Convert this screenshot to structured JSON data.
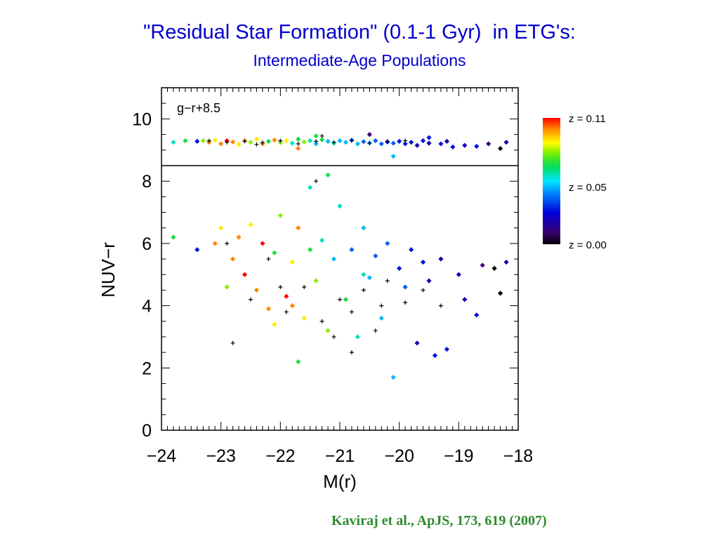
{
  "slide": {
    "title": "\"Residual Star Formation\" (0.1-1 Gyr)  in ETG's:",
    "subtitle": "Intermediate-Age Populations",
    "citation": "Kaviraj et al., ApJS, 173, 619 (2007)"
  },
  "chart_data": {
    "type": "scatter",
    "xlabel": "M(r)",
    "ylabel": "NUV−r",
    "xlim": [
      -24,
      -18
    ],
    "x_ticks": [
      "−24",
      "−23",
      "−22",
      "−21",
      "−20",
      "−19",
      "−18"
    ],
    "panels": [
      {
        "name": "g-r",
        "annotation": "g−r+8.5",
        "ylim": [
          8.5,
          11
        ],
        "y_ticks": [
          "10"
        ],
        "y_tick_values": [
          10
        ],
        "points": [
          [
            -23.8,
            9.25,
            0.06
          ],
          [
            -23.6,
            9.3,
            0.07
          ],
          [
            -23.4,
            9.28,
            0.03
          ],
          [
            -23.3,
            9.3,
            0.08
          ],
          [
            -23.2,
            9.25,
            0.1
          ],
          [
            -23.1,
            9.32,
            0.09
          ],
          [
            -23.0,
            9.2,
            0.1
          ],
          [
            -22.9,
            9.3,
            0.11
          ],
          [
            -22.8,
            9.26,
            0.1
          ],
          [
            -22.7,
            9.18,
            0.09
          ],
          [
            -22.6,
            9.3,
            0.1
          ],
          [
            -22.5,
            9.25,
            0.08
          ],
          [
            -22.4,
            9.35,
            0.09
          ],
          [
            -22.3,
            9.2,
            0.1
          ],
          [
            -22.2,
            9.28,
            0.07
          ],
          [
            -22.1,
            9.32,
            0.1
          ],
          [
            -22.0,
            9.24,
            0.08
          ],
          [
            -21.9,
            9.3,
            0.09
          ],
          [
            -21.8,
            9.22,
            0.06
          ],
          [
            -21.7,
            9.35,
            0.07
          ],
          [
            -21.6,
            9.26,
            0.08
          ],
          [
            -21.5,
            9.3,
            0.06
          ],
          [
            -21.4,
            9.2,
            0.05
          ],
          [
            -21.3,
            9.33,
            0.07
          ],
          [
            -21.2,
            9.28,
            0.05
          ],
          [
            -21.1,
            9.22,
            0.06
          ],
          [
            -21.0,
            9.3,
            0.05
          ],
          [
            -20.9,
            9.25,
            0.05
          ],
          [
            -20.8,
            9.32,
            0.04
          ],
          [
            -20.7,
            9.2,
            0.05
          ],
          [
            -20.6,
            9.27,
            0.04
          ],
          [
            -20.5,
            9.23,
            0.05
          ],
          [
            -20.4,
            9.3,
            0.04
          ],
          [
            -20.3,
            9.2,
            0.04
          ],
          [
            -20.2,
            9.26,
            0.03
          ],
          [
            -20.1,
            9.22,
            0.04
          ],
          [
            -20.0,
            9.28,
            0.03
          ],
          [
            -19.9,
            9.2,
            0.03
          ],
          [
            -19.8,
            9.25,
            0.03
          ],
          [
            -19.7,
            9.15,
            0.02
          ],
          [
            -19.6,
            9.3,
            0.03
          ],
          [
            -19.5,
            9.22,
            0.02
          ],
          [
            -19.3,
            9.2,
            0.03
          ],
          [
            -19.2,
            9.28,
            0.02
          ],
          [
            -19.1,
            9.1,
            0.03
          ],
          [
            -18.9,
            9.15,
            0.02
          ],
          [
            -18.7,
            9.12,
            0.03
          ],
          [
            -18.5,
            9.2,
            0.01
          ],
          [
            -18.3,
            9.05,
            0.0
          ],
          [
            -18.2,
            9.25,
            0.02
          ],
          [
            -20.5,
            9.5,
            0.01
          ],
          [
            -19.5,
            9.4,
            0.03
          ],
          [
            -21.4,
            9.45,
            0.07
          ],
          [
            -20.1,
            8.8,
            0.05
          ],
          [
            -21.7,
            9.05,
            0.1
          ]
        ],
        "unresolved_points": [
          [
            -23.2,
            9.3
          ],
          [
            -22.9,
            9.25
          ],
          [
            -22.6,
            9.28
          ],
          [
            -22.3,
            9.24
          ],
          [
            -22.0,
            9.3
          ],
          [
            -21.7,
            9.2
          ],
          [
            -21.4,
            9.28
          ],
          [
            -21.1,
            9.25
          ],
          [
            -20.8,
            9.3
          ],
          [
            -20.5,
            9.22
          ],
          [
            -20.2,
            9.28
          ],
          [
            -19.9,
            9.3
          ],
          [
            -21.3,
            9.45
          ],
          [
            -22.4,
            9.18
          ]
        ]
      },
      {
        "name": "nuv-r",
        "ylim": [
          0,
          8.5
        ],
        "y_ticks": [
          "0",
          "2",
          "4",
          "6",
          "8"
        ],
        "y_tick_values": [
          0,
          2,
          4,
          6,
          8
        ],
        "points": [
          [
            -23.8,
            6.2,
            0.07
          ],
          [
            -23.4,
            5.8,
            0.03
          ],
          [
            -23.1,
            6.0,
            0.1
          ],
          [
            -23.0,
            6.5,
            0.09
          ],
          [
            -22.9,
            4.6,
            0.08
          ],
          [
            -22.8,
            5.5,
            0.1
          ],
          [
            -22.7,
            6.2,
            0.1
          ],
          [
            -22.6,
            5.0,
            0.11
          ],
          [
            -22.5,
            6.6,
            0.09
          ],
          [
            -22.4,
            4.5,
            0.1
          ],
          [
            -22.3,
            6.0,
            0.11
          ],
          [
            -22.2,
            3.9,
            0.1
          ],
          [
            -22.1,
            5.7,
            0.07
          ],
          [
            -22.0,
            6.9,
            0.08
          ],
          [
            -21.9,
            4.3,
            0.11
          ],
          [
            -21.8,
            5.4,
            0.09
          ],
          [
            -21.7,
            6.5,
            0.1
          ],
          [
            -21.6,
            3.6,
            0.09
          ],
          [
            -21.5,
            5.8,
            0.07
          ],
          [
            -21.4,
            4.8,
            0.08
          ],
          [
            -21.3,
            6.1,
            0.06
          ],
          [
            -21.2,
            3.2,
            0.08
          ],
          [
            -21.1,
            5.5,
            0.05
          ],
          [
            -21.0,
            7.2,
            0.06
          ],
          [
            -20.9,
            4.2,
            0.07
          ],
          [
            -20.8,
            5.8,
            0.04
          ],
          [
            -20.7,
            3.0,
            0.06
          ],
          [
            -20.6,
            6.5,
            0.05
          ],
          [
            -20.5,
            4.9,
            0.05
          ],
          [
            -20.4,
            5.6,
            0.04
          ],
          [
            -20.3,
            3.6,
            0.05
          ],
          [
            -20.2,
            6.0,
            0.04
          ],
          [
            -20.1,
            1.7,
            0.05
          ],
          [
            -20.0,
            5.2,
            0.03
          ],
          [
            -19.9,
            4.6,
            0.04
          ],
          [
            -19.8,
            5.8,
            0.03
          ],
          [
            -19.7,
            2.8,
            0.02
          ],
          [
            -19.6,
            5.4,
            0.03
          ],
          [
            -19.5,
            4.8,
            0.02
          ],
          [
            -19.4,
            2.4,
            0.03
          ],
          [
            -19.3,
            5.5,
            0.02
          ],
          [
            -19.2,
            2.6,
            0.03
          ],
          [
            -19.0,
            5.0,
            0.02
          ],
          [
            -18.9,
            4.2,
            0.02
          ],
          [
            -18.7,
            3.7,
            0.03
          ],
          [
            -18.6,
            5.3,
            0.01
          ],
          [
            -18.4,
            5.2,
            0.0
          ],
          [
            -18.3,
            4.4,
            0.0
          ],
          [
            -18.2,
            5.4,
            0.02
          ],
          [
            -21.7,
            2.2,
            0.07
          ],
          [
            -21.2,
            8.2,
            0.07
          ],
          [
            -21.5,
            7.8,
            0.06
          ],
          [
            -20.6,
            5.0,
            0.06
          ],
          [
            -21.8,
            4.0,
            0.1
          ],
          [
            -22.1,
            3.4,
            0.09
          ]
        ],
        "unresolved_points": [
          [
            -22.8,
            2.8
          ],
          [
            -22.5,
            4.2
          ],
          [
            -22.2,
            5.5
          ],
          [
            -21.9,
            3.8
          ],
          [
            -21.6,
            4.6
          ],
          [
            -21.3,
            3.5
          ],
          [
            -21.0,
            4.2
          ],
          [
            -20.8,
            3.8
          ],
          [
            -20.6,
            4.5
          ],
          [
            -20.4,
            3.2
          ],
          [
            -20.2,
            4.8
          ],
          [
            -19.9,
            4.1
          ],
          [
            -19.6,
            4.5
          ],
          [
            -19.3,
            4.0
          ],
          [
            -21.4,
            8.0
          ],
          [
            -22.9,
            6.0
          ],
          [
            -20.8,
            2.5
          ],
          [
            -21.1,
            3.0
          ],
          [
            -22.0,
            4.6
          ],
          [
            -20.3,
            4.0
          ]
        ]
      }
    ],
    "colorbar": {
      "labels": [
        "z = 0.11",
        "z = 0.05",
        "z = 0.00"
      ],
      "values": [
        0.11,
        0.05,
        0.0
      ],
      "range": [
        0.0,
        0.11
      ],
      "colors": [
        "#ff0000",
        "#ff8c00",
        "#ffff00",
        "#00ff00",
        "#00ffff",
        "#0066ff",
        "#0000cc",
        "#330066",
        "#000000"
      ]
    }
  }
}
